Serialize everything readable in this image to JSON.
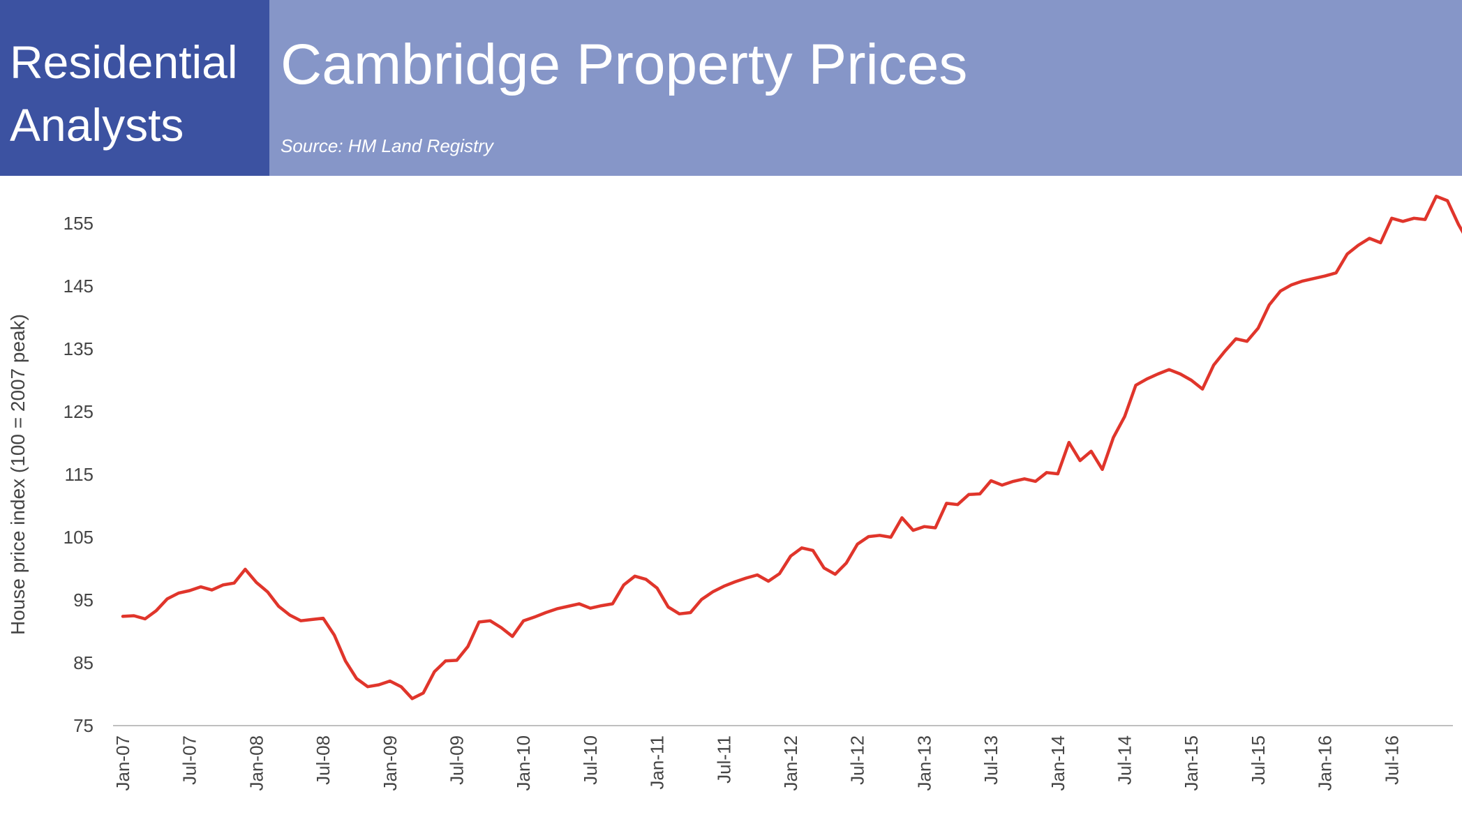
{
  "header": {
    "brand_line1": "Residential",
    "brand_line2": "Analysts",
    "title": "Cambridge Property Prices",
    "subtitle": "Source: HM Land Registry"
  },
  "colors": {
    "brand_bg": "#3c52a1",
    "title_bg": "#8696c8",
    "line": "#e0352b",
    "text": "#444444"
  },
  "chart_data": {
    "type": "line",
    "title": "Cambridge Property Prices",
    "xlabel": "",
    "ylabel": "House price index (100 = 2007 peak)",
    "ylim": [
      75,
      160
    ],
    "yticks": [
      75,
      85,
      95,
      105,
      115,
      125,
      135,
      145,
      155
    ],
    "grid": false,
    "legend": "none",
    "x_tick_labels": [
      "Jan-07",
      "Jul-07",
      "Jan-08",
      "Jul-08",
      "Jan-09",
      "Jul-09",
      "Jan-10",
      "Jul-10",
      "Jan-11",
      "Jul-11",
      "Jan-12",
      "Jul-12",
      "Jan-13",
      "Jul-13",
      "Jan-14",
      "Jul-14",
      "Jan-15",
      "Jul-15",
      "Jan-16",
      "Jul-16"
    ],
    "x_start": "Jan-07",
    "x_frequency": "monthly",
    "series": [
      {
        "values": [
          92.4,
          92.5,
          92.0,
          93.3,
          95.2,
          96.1,
          96.5,
          97.1,
          96.6,
          97.4,
          97.7,
          99.9,
          97.8,
          96.3,
          94.0,
          92.6,
          91.7,
          91.9,
          92.1,
          89.4,
          85.3,
          82.5,
          81.2,
          81.5,
          82.1,
          81.2,
          79.3,
          80.2,
          83.6,
          85.3,
          85.4,
          87.6,
          91.5,
          91.7,
          90.6,
          89.2,
          91.7,
          92.3,
          93.0,
          93.6,
          94.0,
          94.4,
          93.7,
          94.1,
          94.4,
          97.4,
          98.8,
          98.3,
          96.9,
          93.9,
          92.8,
          93.0,
          95.1,
          96.3,
          97.2,
          97.9,
          98.5,
          99.0,
          98.0,
          99.2,
          102.0,
          103.3,
          102.9,
          100.1,
          99.1,
          100.9,
          103.9,
          105.1,
          105.3,
          105.0,
          108.1,
          106.1,
          106.7,
          106.5,
          110.4,
          110.2,
          111.8,
          111.9,
          114.0,
          113.3,
          113.9,
          114.3,
          113.9,
          115.3,
          115.1,
          120.1,
          117.2,
          118.7,
          115.8,
          120.9,
          124.2,
          129.2,
          130.2,
          131.0,
          131.7,
          131.0,
          130.0,
          128.6,
          132.4,
          134.6,
          136.6,
          136.2,
          138.3,
          142.0,
          144.2,
          145.2,
          145.8,
          146.2,
          146.6,
          147.1,
          150.1,
          151.5,
          152.6,
          151.9,
          155.8,
          155.3,
          155.8,
          155.6,
          159.3,
          158.6,
          154.8,
          151.7
        ]
      }
    ]
  }
}
